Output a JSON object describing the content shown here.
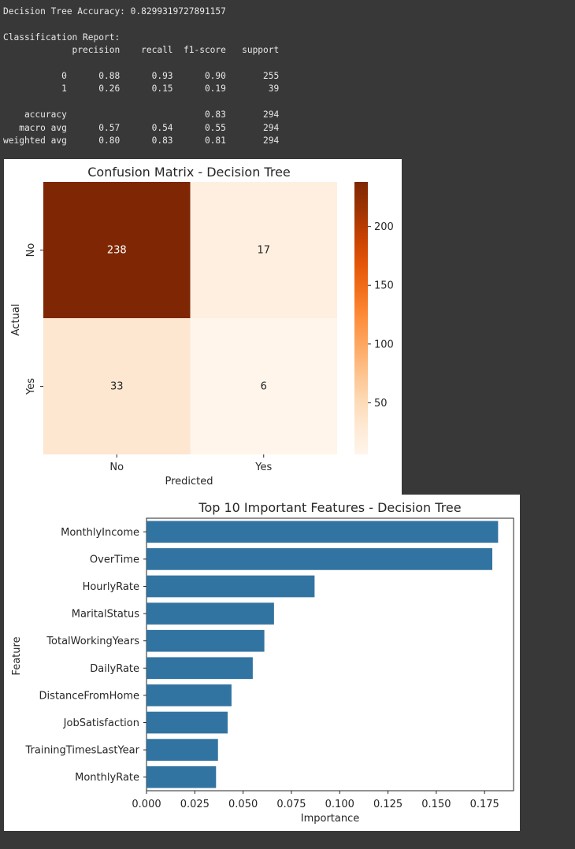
{
  "console": {
    "accuracy_line": "Decision Tree Accuracy: 0.8299319727891157",
    "report_title": "Classification Report:",
    "header_cols": [
      "precision",
      "recall",
      "f1-score",
      "support"
    ],
    "class_rows": [
      {
        "label": "0",
        "precision": "0.88",
        "recall": "0.93",
        "f1": "0.90",
        "support": "255"
      },
      {
        "label": "1",
        "precision": "0.26",
        "recall": "0.15",
        "f1": "0.19",
        "support": "39"
      }
    ],
    "accuracy_row": {
      "label": "accuracy",
      "f1": "0.83",
      "support": "294"
    },
    "avg_rows": [
      {
        "label": "macro avg",
        "precision": "0.57",
        "recall": "0.54",
        "f1": "0.55",
        "support": "294"
      },
      {
        "label": "weighted avg",
        "precision": "0.80",
        "recall": "0.83",
        "f1": "0.81",
        "support": "294"
      }
    ]
  },
  "chart_data": [
    {
      "type": "heatmap",
      "title": "Confusion Matrix - Decision Tree",
      "xlabel": "Predicted",
      "ylabel": "Actual",
      "x_categories": [
        "No",
        "Yes"
      ],
      "y_categories": [
        "No",
        "Yes"
      ],
      "values": [
        [
          238,
          17
        ],
        [
          33,
          6
        ]
      ],
      "colormap": "Oranges",
      "colorbar_ticks": [
        50,
        100,
        150,
        200
      ],
      "colorbar_range": [
        6,
        238
      ],
      "colors": {
        "low": "#fff5eb",
        "high": "#7f2704"
      }
    },
    {
      "type": "bar",
      "orientation": "horizontal",
      "title": "Top 10 Important Features - Decision Tree",
      "xlabel": "Importance",
      "ylabel": "Feature",
      "categories": [
        "MonthlyIncome",
        "OverTime",
        "HourlyRate",
        "MaritalStatus",
        "TotalWorkingYears",
        "DailyRate",
        "DistanceFromHome",
        "JobSatisfaction",
        "TrainingTimesLastYear",
        "MonthlyRate"
      ],
      "values": [
        0.182,
        0.179,
        0.087,
        0.066,
        0.061,
        0.055,
        0.044,
        0.042,
        0.037,
        0.036
      ],
      "xlim": [
        0,
        0.19
      ],
      "xticks": [
        "0.000",
        "0.025",
        "0.050",
        "0.075",
        "0.100",
        "0.125",
        "0.150",
        "0.175"
      ],
      "bar_color": "#3274a1"
    }
  ]
}
